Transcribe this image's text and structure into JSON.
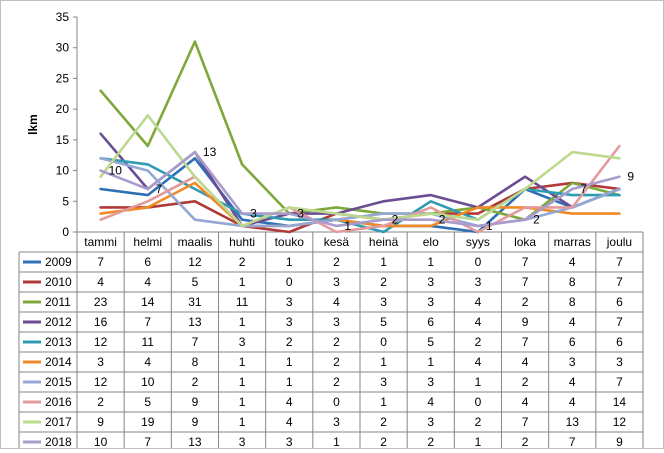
{
  "chart_data": {
    "type": "line",
    "ylabel": "lkm",
    "ylim": [
      0,
      35
    ],
    "yticks": [
      0,
      5,
      10,
      15,
      20,
      25,
      30,
      35
    ],
    "grid": false,
    "legend": "data-table-below",
    "categories": [
      "tammi",
      "helmi",
      "maalis",
      "huhti",
      "touko",
      "kesä",
      "heinä",
      "elo",
      "syys",
      "loka",
      "marras",
      "joulu"
    ],
    "series": [
      {
        "name": "2009",
        "color": "#2E6FB5",
        "values": [
          7,
          6,
          12,
          2,
          1,
          2,
          1,
          1,
          0,
          7,
          4,
          7
        ]
      },
      {
        "name": "2010",
        "color": "#B03A35",
        "values": [
          4,
          4,
          5,
          1,
          0,
          3,
          2,
          3,
          3,
          7,
          8,
          7
        ]
      },
      {
        "name": "2011",
        "color": "#7FA83A",
        "values": [
          23,
          14,
          31,
          11,
          3,
          4,
          3,
          3,
          4,
          2,
          8,
          6
        ]
      },
      {
        "name": "2012",
        "color": "#6B4D93",
        "values": [
          16,
          7,
          13,
          1,
          3,
          3,
          5,
          6,
          4,
          9,
          4,
          7
        ]
      },
      {
        "name": "2013",
        "color": "#2F9BB3",
        "values": [
          12,
          11,
          7,
          3,
          2,
          2,
          0,
          5,
          2,
          7,
          6,
          6
        ]
      },
      {
        "name": "2014",
        "color": "#F08A24",
        "values": [
          3,
          4,
          8,
          1,
          1,
          2,
          1,
          1,
          4,
          4,
          3,
          3
        ]
      },
      {
        "name": "2015",
        "color": "#94A8D6",
        "values": [
          12,
          10,
          2,
          1,
          1,
          2,
          3,
          3,
          1,
          2,
          4,
          7
        ]
      },
      {
        "name": "2016",
        "color": "#E49A9A",
        "values": [
          2,
          5,
          9,
          1,
          4,
          0,
          1,
          4,
          0,
          4,
          4,
          14
        ]
      },
      {
        "name": "2017",
        "color": "#BCD98E",
        "values": [
          9,
          19,
          9,
          1,
          4,
          3,
          2,
          3,
          2,
          7,
          13,
          12
        ]
      },
      {
        "name": "2018",
        "color": "#A99BCB",
        "values": [
          10,
          7,
          13,
          3,
          3,
          1,
          2,
          2,
          1,
          2,
          7,
          9
        ]
      }
    ],
    "annotations": [
      {
        "series": "2018",
        "category": "tammi",
        "text": "10"
      },
      {
        "series": "2018",
        "category": "helmi",
        "text": "7"
      },
      {
        "series": "2018",
        "category": "maalis",
        "text": "13"
      },
      {
        "series": "2018",
        "category": "huhti",
        "text": "3"
      },
      {
        "series": "2018",
        "category": "touko",
        "text": "3"
      },
      {
        "series": "2018",
        "category": "kesä",
        "text": "1"
      },
      {
        "series": "2018",
        "category": "heinä",
        "text": "2"
      },
      {
        "series": "2018",
        "category": "elo",
        "text": "2"
      },
      {
        "series": "2018",
        "category": "syys",
        "text": "1"
      },
      {
        "series": "2018",
        "category": "loka",
        "text": "2"
      },
      {
        "series": "2018",
        "category": "marras",
        "text": "7"
      },
      {
        "series": "2018",
        "category": "joulu",
        "text": "9"
      }
    ]
  }
}
